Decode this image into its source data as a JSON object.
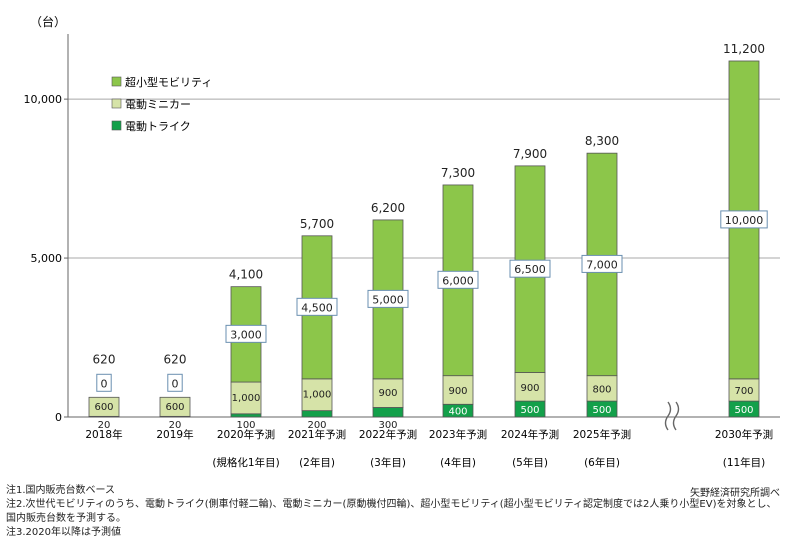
{
  "chart_data": {
    "type": "bar",
    "stacked": true,
    "unit_label": "（台）",
    "y_ticks": [
      "0",
      "5,000",
      "10,000"
    ],
    "ylim": [
      0,
      12500
    ],
    "grid": true,
    "legend_position": "top-left",
    "categories": [
      {
        "year": "2018年",
        "sub": ""
      },
      {
        "year": "2019年",
        "sub": ""
      },
      {
        "year": "2020年予測",
        "sub": "(規格化1年目)"
      },
      {
        "year": "2021年予測",
        "sub": "(2年目)"
      },
      {
        "year": "2022年予測",
        "sub": "(3年目)"
      },
      {
        "year": "2023年予測",
        "sub": "(4年目)"
      },
      {
        "year": "2024年予測",
        "sub": "(5年目)"
      },
      {
        "year": "2025年予測",
        "sub": "(6年目)"
      },
      {
        "year": "2030年予測",
        "sub": "(11年目)"
      }
    ],
    "series": [
      {
        "name": "電動トライク",
        "color": "#13a04a",
        "values": [
          20,
          20,
          100,
          200,
          300,
          400,
          500,
          500,
          500
        ],
        "labels": [
          "20",
          "20",
          "100",
          "200",
          "300",
          "400",
          "500",
          "500",
          "500"
        ]
      },
      {
        "name": "電動ミニカー",
        "color": "#d6e3a8",
        "values": [
          600,
          600,
          1000,
          1000,
          900,
          900,
          900,
          800,
          700
        ],
        "labels": [
          "600",
          "600",
          "1,000",
          "1,000",
          "900",
          "900",
          "900",
          "800",
          "700"
        ]
      },
      {
        "name": "超小型モビリティ",
        "color": "#8cc64a",
        "values": [
          0,
          0,
          3000,
          4500,
          5000,
          6000,
          6500,
          7000,
          10000
        ],
        "labels": [
          "0",
          "0",
          "3,000",
          "4,500",
          "5,000",
          "6,000",
          "6,500",
          "7,000",
          "10,000"
        ]
      }
    ],
    "totals": [
      "620",
      "620",
      "4,100",
      "5,700",
      "6,200",
      "7,300",
      "7,900",
      "8,300",
      "11,200"
    ],
    "axis_break_between": [
      "2025年予測",
      "2030年予測"
    ]
  },
  "notes": [
    "注1.国内販売台数ベース",
    "注2.次世代モビリティのうち、電動トライク(側車付軽二輪)、電動ミニカー(原動機付四輪)、超小型モビリティ(超小型モビリティ認定制度では2人乗り小型EV)を対象とし、",
    "国内販売台数を予測する。",
    "注3.2020年以降は予測値"
  ],
  "credit": "矢野経済研究所調べ"
}
